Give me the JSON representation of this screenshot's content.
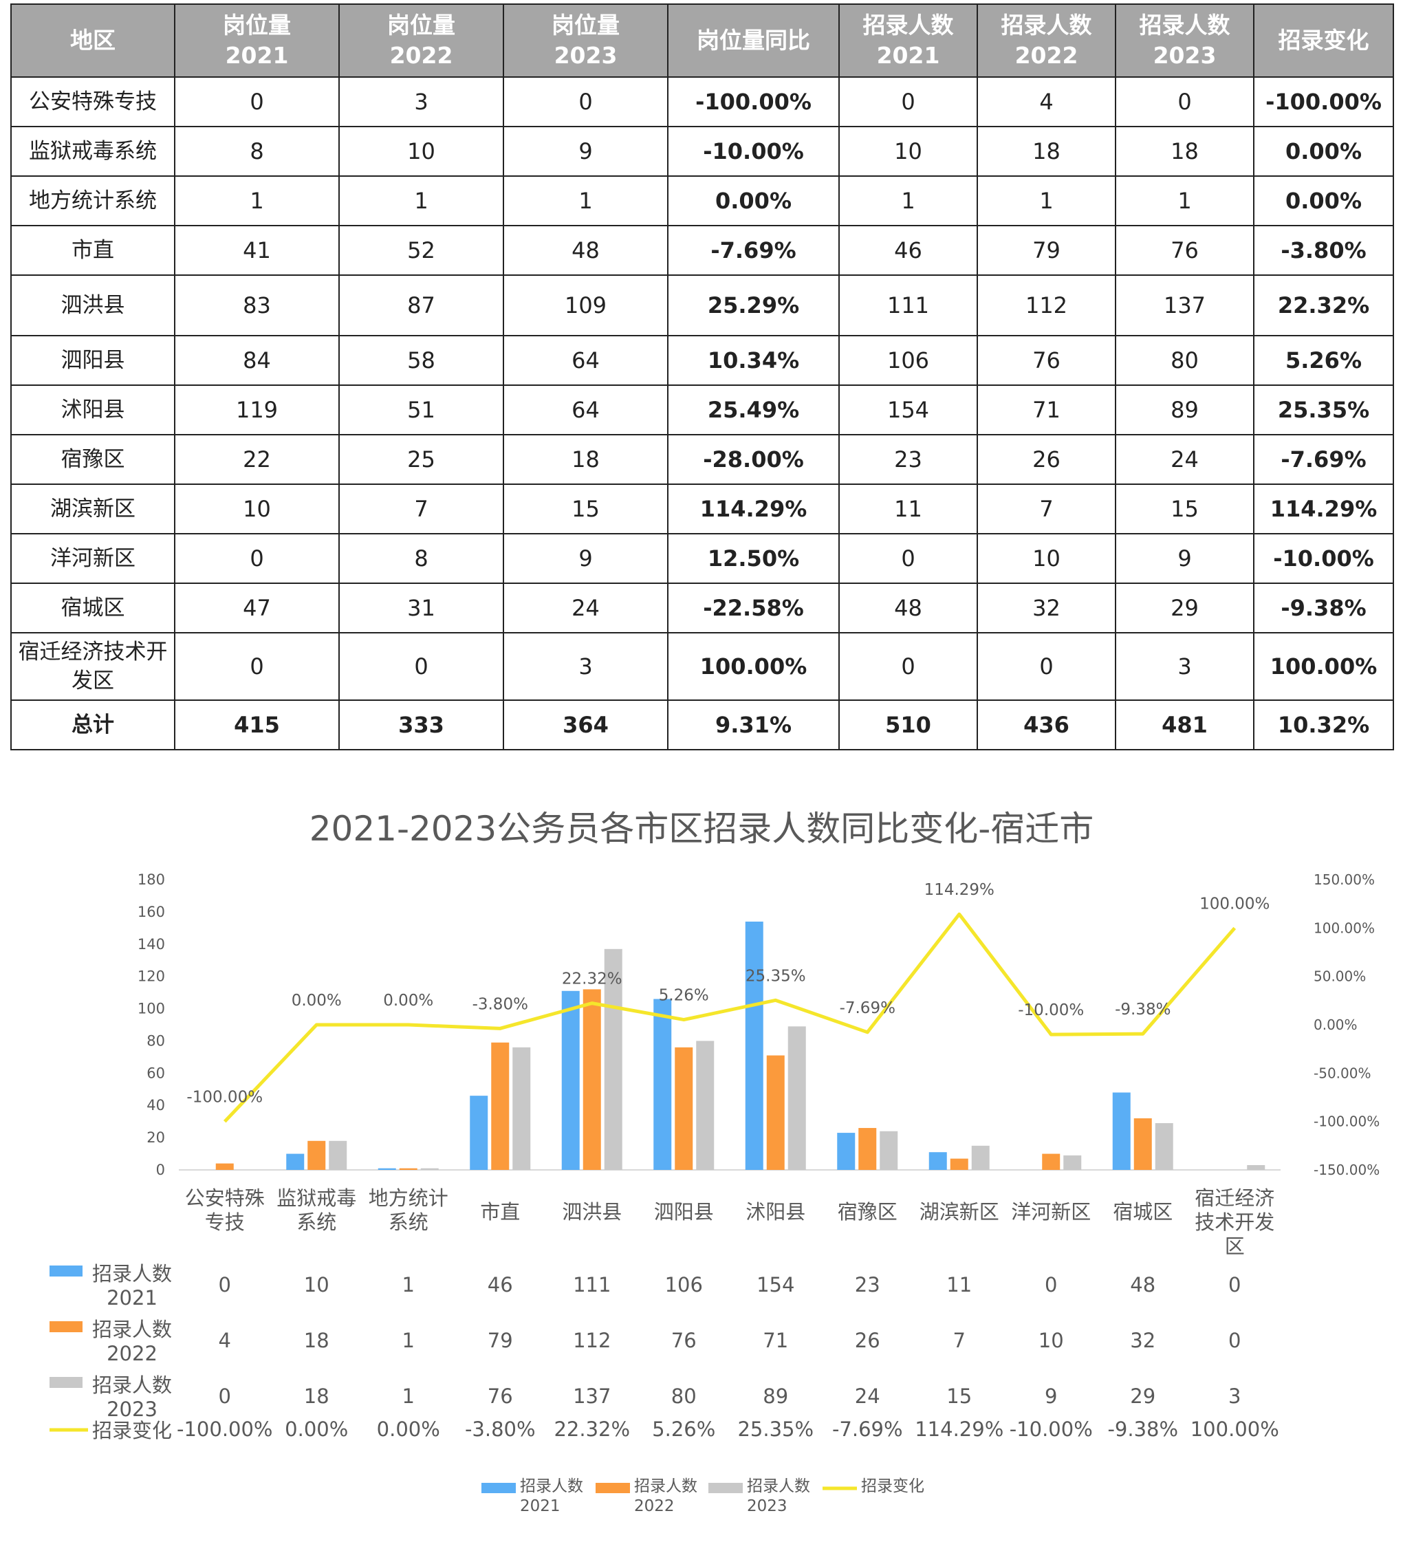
{
  "table": {
    "headers": [
      "地区",
      "岗位量\n2021",
      "岗位量\n2022",
      "岗位量\n2023",
      "岗位量同比",
      "招录人数\n2021",
      "招录人数\n2022",
      "招录人数\n2023",
      "招录变化"
    ],
    "rows": [
      [
        "公安特殊专技",
        "0",
        "3",
        "0",
        "-100.00%",
        "0",
        "4",
        "0",
        "-100.00%"
      ],
      [
        "监狱戒毒系统",
        "8",
        "10",
        "9",
        "-10.00%",
        "10",
        "18",
        "18",
        "0.00%"
      ],
      [
        "地方统计系统",
        "1",
        "1",
        "1",
        "0.00%",
        "1",
        "1",
        "1",
        "0.00%"
      ],
      [
        "市直",
        "41",
        "52",
        "48",
        "-7.69%",
        "46",
        "79",
        "76",
        "-3.80%"
      ],
      [
        "泗洪县",
        "83",
        "87",
        "109",
        "25.29%",
        "111",
        "112",
        "137",
        "22.32%"
      ],
      [
        "泗阳县",
        "84",
        "58",
        "64",
        "10.34%",
        "106",
        "76",
        "80",
        "5.26%"
      ],
      [
        "沭阳县",
        "119",
        "51",
        "64",
        "25.49%",
        "154",
        "71",
        "89",
        "25.35%"
      ],
      [
        "宿豫区",
        "22",
        "25",
        "18",
        "-28.00%",
        "23",
        "26",
        "24",
        "-7.69%"
      ],
      [
        "湖滨新区",
        "10",
        "7",
        "15",
        "114.29%",
        "11",
        "7",
        "15",
        "114.29%"
      ],
      [
        "洋河新区",
        "0",
        "8",
        "9",
        "12.50%",
        "0",
        "10",
        "9",
        "-10.00%"
      ],
      [
        "宿城区",
        "47",
        "31",
        "24",
        "-22.58%",
        "48",
        "32",
        "29",
        "-9.38%"
      ],
      [
        "宿迁经济技术开发区",
        "0",
        "0",
        "3",
        "100.00%",
        "0",
        "0",
        "3",
        "100.00%"
      ]
    ],
    "total": [
      "总计",
      "415",
      "333",
      "364",
      "9.31%",
      "510",
      "436",
      "481",
      "10.32%"
    ]
  },
  "chart_data": {
    "type": "bar",
    "title": "2021-2023公务员各市区招录人数同比变化-宿迁市",
    "categories": [
      "公安特殊专技",
      "监狱戒毒系统",
      "地方统计系统",
      "市直",
      "泗洪县",
      "泗阳县",
      "沭阳县",
      "宿豫区",
      "湖滨新区",
      "洋河新区",
      "宿城区",
      "宿迁经济技术开发区"
    ],
    "series": [
      {
        "name": "招录人数\n2021",
        "type": "bar",
        "axis": "left",
        "color": "#5aaef5",
        "values": [
          0,
          10,
          1,
          46,
          111,
          106,
          154,
          23,
          11,
          0,
          48,
          0
        ]
      },
      {
        "name": "招录人数\n2022",
        "type": "bar",
        "axis": "left",
        "color": "#fb9a3c",
        "values": [
          4,
          18,
          1,
          79,
          112,
          76,
          71,
          26,
          7,
          10,
          32,
          0
        ]
      },
      {
        "name": "招录人数\n2023",
        "type": "bar",
        "axis": "left",
        "color": "#c8c8c8",
        "values": [
          0,
          18,
          1,
          76,
          137,
          80,
          89,
          24,
          15,
          9,
          29,
          3
        ]
      },
      {
        "name": "招录变化",
        "type": "line",
        "axis": "right",
        "color": "#f5e62b",
        "values": [
          -100.0,
          0.0,
          0.0,
          -3.8,
          22.32,
          5.26,
          25.35,
          -7.69,
          114.29,
          -10.0,
          -9.38,
          100.0
        ],
        "labels": [
          "-100.00%",
          "0.00%",
          "0.00%",
          "-3.80%",
          "22.32%",
          "5.26%",
          "25.35%",
          "-7.69%",
          "114.29%",
          "-10.00%",
          "-9.38%",
          "100.00%"
        ]
      }
    ],
    "ylim": [
      0,
      180
    ],
    "yticks": [
      "0",
      "20",
      "40",
      "60",
      "80",
      "100",
      "120",
      "140",
      "160",
      "180"
    ],
    "y2lim": [
      -150,
      150
    ],
    "y2ticks": [
      "-150.00%",
      "-100.00%",
      "-50.00%",
      "0.00%",
      "50.00%",
      "100.00%",
      "150.00%"
    ],
    "data_table": {
      "rows": [
        {
          "label": "招录人数\n2021",
          "values": [
            "0",
            "10",
            "1",
            "46",
            "111",
            "106",
            "154",
            "23",
            "11",
            "0",
            "48",
            "0"
          ]
        },
        {
          "label": "招录人数\n2022",
          "values": [
            "4",
            "18",
            "1",
            "79",
            "112",
            "76",
            "71",
            "26",
            "7",
            "10",
            "32",
            "0"
          ]
        },
        {
          "label": "招录人数\n2023",
          "values": [
            "0",
            "18",
            "1",
            "76",
            "137",
            "80",
            "89",
            "24",
            "15",
            "9",
            "29",
            "3"
          ]
        },
        {
          "label": "招录变化",
          "values": [
            "-100.00%",
            "0.00%",
            "0.00%",
            "-3.80%",
            "22.32%",
            "5.26%",
            "25.35%",
            "-7.69%",
            "114.29%",
            "-10.00%",
            "-9.38%",
            "100.00%"
          ]
        }
      ]
    },
    "legend_position": "bottom",
    "grid": false
  }
}
